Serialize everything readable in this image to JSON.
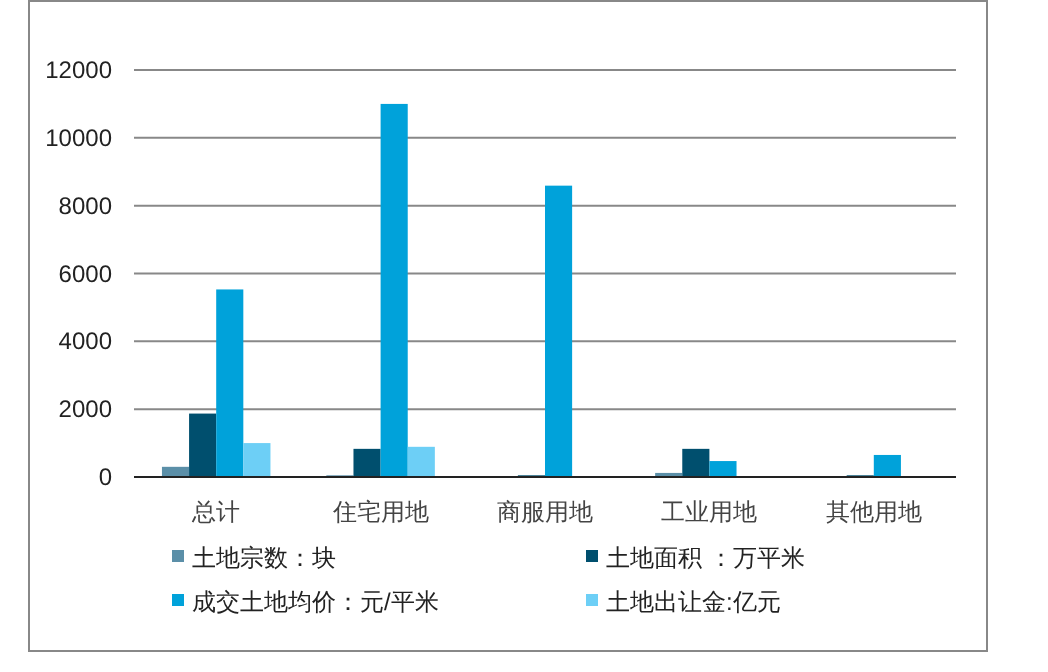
{
  "chart_data": {
    "type": "bar",
    "categories": [
      "总计",
      "住宅用地",
      "商服用地",
      "工业用地",
      "其他用地"
    ],
    "series": [
      {
        "name": "土地宗数：块",
        "color": "#5b8fa8",
        "values": [
          300,
          50,
          null,
          120,
          null
        ]
      },
      {
        "name": "土地面积 ：万平米",
        "color": "#004f6e",
        "values": [
          1870,
          830,
          50,
          830,
          50
        ]
      },
      {
        "name": "成交土地均价：元/平米",
        "color": "#00a2da",
        "values": [
          5530,
          11000,
          8590,
          470,
          650
        ]
      },
      {
        "name": "土地出让金:亿元",
        "color": "#6dcff6",
        "values": [
          1000,
          890,
          null,
          null,
          null
        ]
      }
    ],
    "ylim": [
      0,
      12000
    ],
    "yticks": [
      0,
      2000,
      4000,
      6000,
      8000,
      10000,
      12000
    ],
    "grid": "y",
    "legend": "bottom"
  }
}
